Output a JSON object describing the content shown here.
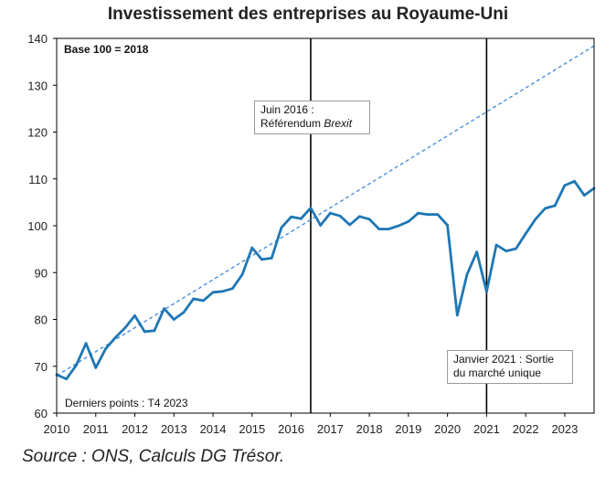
{
  "title": "Investissement des entreprises au Royaume-Uni",
  "source": "Source : ONS, Calculs DG Trésor.",
  "chart_data": {
    "type": "line",
    "title": "Investissement des entreprises au Royaume-Uni",
    "base_label": "Base 100 = 2018",
    "last_points_label": "Derniers points : T4 2023",
    "xlabel": "",
    "ylabel": "",
    "xlim": [
      2010.0,
      2023.75
    ],
    "ylim": [
      60,
      140
    ],
    "yticks": [
      60,
      70,
      80,
      90,
      100,
      110,
      120,
      130,
      140
    ],
    "xticks": [
      2010,
      2011,
      2012,
      2013,
      2014,
      2015,
      2016,
      2017,
      2018,
      2019,
      2020,
      2021,
      2022,
      2023
    ],
    "grid": false,
    "line_color": "#1f77b4",
    "trend_color": "#4a90d9",
    "series": [
      {
        "style": "solid",
        "x": [
          2010.0,
          2010.25,
          2010.5,
          2010.75,
          2011.0,
          2011.25,
          2011.5,
          2011.75,
          2012.0,
          2012.25,
          2012.5,
          2012.75,
          2013.0,
          2013.25,
          2013.5,
          2013.75,
          2014.0,
          2014.25,
          2014.5,
          2014.75,
          2015.0,
          2015.25,
          2015.5,
          2015.75,
          2016.0,
          2016.25,
          2016.5,
          2016.75,
          2017.0,
          2017.25,
          2017.5,
          2017.75,
          2018.0,
          2018.25,
          2018.5,
          2018.75,
          2019.0,
          2019.25,
          2019.5,
          2019.75,
          2020.0,
          2020.25,
          2020.5,
          2020.75,
          2021.0,
          2021.25,
          2021.5,
          2021.75,
          2022.0,
          2022.25,
          2022.5,
          2022.75,
          2023.0,
          2023.25,
          2023.5,
          2023.75
        ],
        "values": [
          68.2,
          67.3,
          70.2,
          74.9,
          69.7,
          73.7,
          76.1,
          78.2,
          80.8,
          77.4,
          77.6,
          82.3,
          80.0,
          81.5,
          84.4,
          84.0,
          85.8,
          86.0,
          86.6,
          89.6,
          95.3,
          92.8,
          93.1,
          99.6,
          101.9,
          101.5,
          103.8,
          100.1,
          102.7,
          102.1,
          100.2,
          102.0,
          101.4,
          99.3,
          99.3,
          100.0,
          100.9,
          102.7,
          102.4,
          102.4,
          100.1,
          80.9,
          89.6,
          94.4,
          85.9,
          95.9,
          94.6,
          95.1,
          98.3,
          101.4,
          103.7,
          104.3,
          108.6,
          109.5,
          106.5,
          108.0
        ]
      },
      {
        "style": "dashed",
        "x": [
          2010.0,
          2023.75
        ],
        "values": [
          68.0,
          138.4
        ]
      }
    ],
    "annotations": [
      {
        "x": 2016.5,
        "lines": [
          "Juin 2016 :",
          "Référendum ",
          "Brexit"
        ]
      },
      {
        "x": 2021.0,
        "lines": [
          "Janvier 2021 : Sortie",
          "du marché unique"
        ]
      }
    ]
  }
}
